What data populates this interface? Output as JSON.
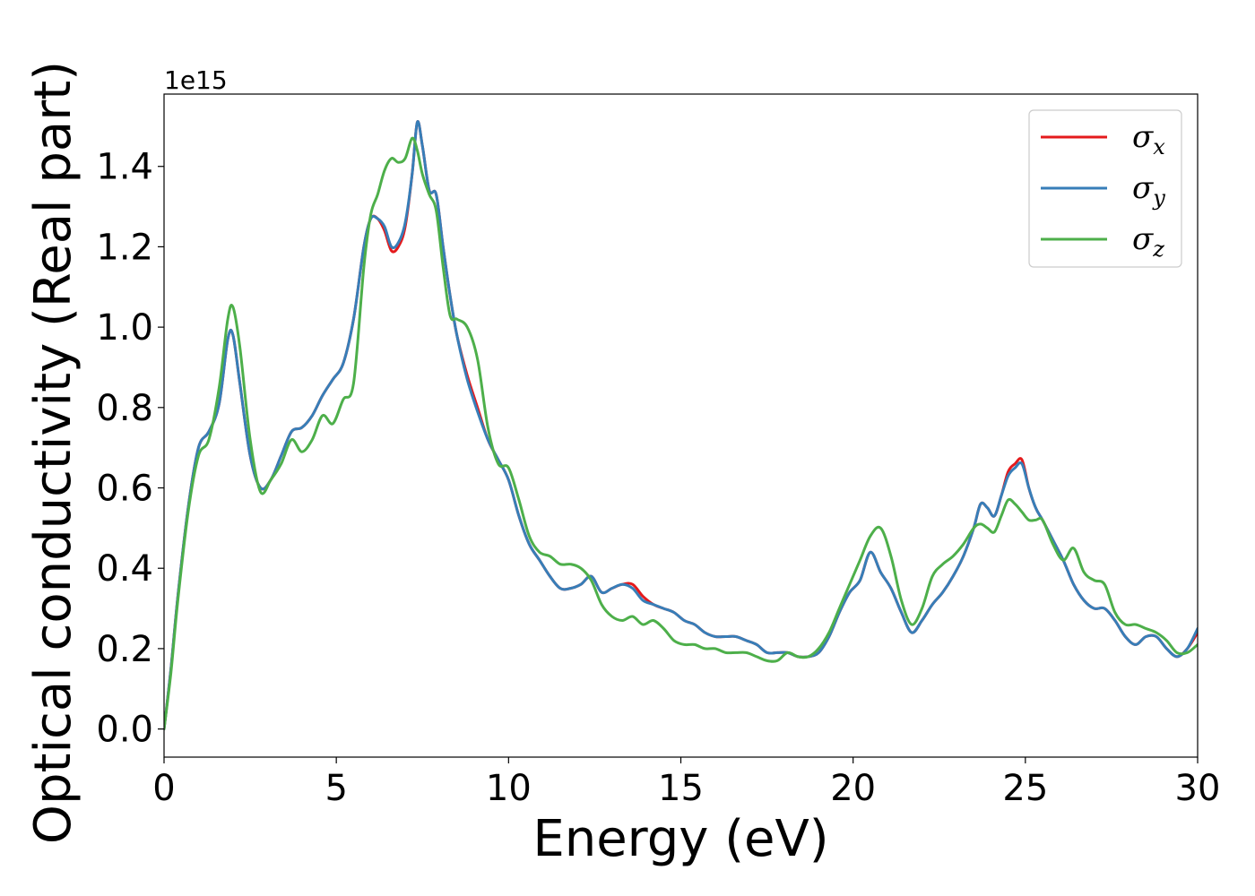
{
  "chart_data": {
    "type": "line",
    "xlabel": "Energy (eV)",
    "ylabel": "Optical conductivity (Real part)",
    "y_offset_label": "1e15",
    "xlim": [
      0,
      30
    ],
    "ylim": [
      -0.07,
      1.58
    ],
    "x_ticks": [
      0,
      5,
      10,
      15,
      20,
      25,
      30
    ],
    "x_tick_labels": [
      "0",
      "5",
      "10",
      "15",
      "20",
      "25",
      "30"
    ],
    "y_ticks": [
      0.0,
      0.2,
      0.4,
      0.6,
      0.8,
      1.0,
      1.2,
      1.4
    ],
    "y_tick_labels": [
      "0.0",
      "0.2",
      "0.4",
      "0.6",
      "0.8",
      "1.0",
      "1.2",
      "1.4"
    ],
    "grid": false,
    "legend_position": "top-right",
    "series": [
      {
        "name": "σx",
        "symbol": "σ",
        "subscript": "x",
        "color": "#e41a1c",
        "x": [
          0,
          0.2,
          0.4,
          0.7,
          1.0,
          1.3,
          1.6,
          1.85,
          2.0,
          2.2,
          2.5,
          2.8,
          3.1,
          3.4,
          3.7,
          4.0,
          4.3,
          4.6,
          4.9,
          5.2,
          5.5,
          5.8,
          6.0,
          6.2,
          6.4,
          6.6,
          6.8,
          7.0,
          7.2,
          7.35,
          7.5,
          7.7,
          7.9,
          8.1,
          8.3,
          8.5,
          8.8,
          9.1,
          9.4,
          9.7,
          10.0,
          10.3,
          10.6,
          10.9,
          11.2,
          11.5,
          11.8,
          12.1,
          12.4,
          12.7,
          13.0,
          13.3,
          13.6,
          13.9,
          14.2,
          14.5,
          14.8,
          15.1,
          15.4,
          15.7,
          16.0,
          16.3,
          16.6,
          16.9,
          17.2,
          17.5,
          17.8,
          18.1,
          18.4,
          18.7,
          19.0,
          19.3,
          19.6,
          19.9,
          20.2,
          20.5,
          20.8,
          21.1,
          21.4,
          21.7,
          22.0,
          22.3,
          22.6,
          22.9,
          23.2,
          23.5,
          23.7,
          23.9,
          24.1,
          24.3,
          24.5,
          24.7,
          24.9,
          25.1,
          25.3,
          25.5,
          25.8,
          26.1,
          26.4,
          26.7,
          27.0,
          27.3,
          27.6,
          27.9,
          28.2,
          28.5,
          28.8,
          29.1,
          29.4,
          29.7,
          30.0
        ],
        "y": [
          0.0,
          0.15,
          0.33,
          0.55,
          0.7,
          0.74,
          0.81,
          0.97,
          0.98,
          0.86,
          0.68,
          0.6,
          0.62,
          0.68,
          0.74,
          0.75,
          0.78,
          0.83,
          0.87,
          0.91,
          1.02,
          1.2,
          1.27,
          1.27,
          1.24,
          1.19,
          1.2,
          1.25,
          1.38,
          1.51,
          1.45,
          1.34,
          1.33,
          1.2,
          1.08,
          0.98,
          0.88,
          0.8,
          0.72,
          0.67,
          0.62,
          0.53,
          0.46,
          0.42,
          0.38,
          0.35,
          0.35,
          0.36,
          0.38,
          0.34,
          0.35,
          0.36,
          0.36,
          0.33,
          0.31,
          0.3,
          0.29,
          0.27,
          0.26,
          0.24,
          0.23,
          0.23,
          0.23,
          0.22,
          0.21,
          0.19,
          0.19,
          0.19,
          0.18,
          0.18,
          0.19,
          0.23,
          0.29,
          0.34,
          0.37,
          0.44,
          0.39,
          0.35,
          0.29,
          0.24,
          0.27,
          0.31,
          0.34,
          0.38,
          0.43,
          0.5,
          0.56,
          0.55,
          0.53,
          0.58,
          0.64,
          0.66,
          0.67,
          0.6,
          0.55,
          0.52,
          0.47,
          0.42,
          0.36,
          0.32,
          0.3,
          0.3,
          0.27,
          0.23,
          0.21,
          0.23,
          0.23,
          0.2,
          0.18,
          0.2,
          0.24
        ]
      },
      {
        "name": "σy",
        "symbol": "σ",
        "subscript": "y",
        "color": "#377eb8",
        "x": [
          0,
          0.2,
          0.4,
          0.7,
          1.0,
          1.3,
          1.6,
          1.85,
          2.0,
          2.2,
          2.5,
          2.8,
          3.1,
          3.4,
          3.7,
          4.0,
          4.3,
          4.6,
          4.9,
          5.2,
          5.5,
          5.8,
          6.0,
          6.2,
          6.4,
          6.6,
          6.8,
          7.0,
          7.2,
          7.35,
          7.5,
          7.7,
          7.9,
          8.1,
          8.3,
          8.5,
          8.8,
          9.1,
          9.4,
          9.7,
          10.0,
          10.3,
          10.6,
          10.9,
          11.2,
          11.5,
          11.8,
          12.1,
          12.4,
          12.7,
          13.0,
          13.3,
          13.6,
          13.9,
          14.2,
          14.5,
          14.8,
          15.1,
          15.4,
          15.7,
          16.0,
          16.3,
          16.6,
          16.9,
          17.2,
          17.5,
          17.8,
          18.1,
          18.4,
          18.7,
          19.0,
          19.3,
          19.6,
          19.9,
          20.2,
          20.5,
          20.8,
          21.1,
          21.4,
          21.7,
          22.0,
          22.3,
          22.6,
          22.9,
          23.2,
          23.5,
          23.7,
          23.9,
          24.1,
          24.3,
          24.5,
          24.7,
          24.9,
          25.1,
          25.3,
          25.5,
          25.8,
          26.1,
          26.4,
          26.7,
          27.0,
          27.3,
          27.6,
          27.9,
          28.2,
          28.5,
          28.8,
          29.1,
          29.4,
          29.7,
          30.0
        ],
        "y": [
          0.0,
          0.15,
          0.33,
          0.55,
          0.7,
          0.74,
          0.81,
          0.97,
          0.98,
          0.86,
          0.68,
          0.6,
          0.62,
          0.68,
          0.74,
          0.75,
          0.78,
          0.83,
          0.87,
          0.91,
          1.02,
          1.2,
          1.27,
          1.27,
          1.25,
          1.2,
          1.21,
          1.26,
          1.38,
          1.51,
          1.45,
          1.34,
          1.33,
          1.2,
          1.08,
          0.98,
          0.87,
          0.79,
          0.72,
          0.67,
          0.62,
          0.53,
          0.46,
          0.42,
          0.38,
          0.35,
          0.35,
          0.36,
          0.38,
          0.34,
          0.35,
          0.36,
          0.35,
          0.32,
          0.31,
          0.3,
          0.29,
          0.27,
          0.26,
          0.24,
          0.23,
          0.23,
          0.23,
          0.22,
          0.21,
          0.19,
          0.19,
          0.19,
          0.18,
          0.18,
          0.19,
          0.23,
          0.29,
          0.34,
          0.37,
          0.44,
          0.39,
          0.35,
          0.29,
          0.24,
          0.27,
          0.31,
          0.34,
          0.38,
          0.43,
          0.5,
          0.56,
          0.55,
          0.53,
          0.58,
          0.63,
          0.65,
          0.66,
          0.6,
          0.55,
          0.52,
          0.47,
          0.42,
          0.36,
          0.32,
          0.3,
          0.3,
          0.27,
          0.23,
          0.21,
          0.23,
          0.23,
          0.2,
          0.18,
          0.2,
          0.25
        ]
      },
      {
        "name": "σz",
        "symbol": "σ",
        "subscript": "z",
        "color": "#4daf4a",
        "x": [
          0,
          0.2,
          0.4,
          0.7,
          1.0,
          1.3,
          1.6,
          1.85,
          2.0,
          2.2,
          2.5,
          2.8,
          3.1,
          3.4,
          3.7,
          4.0,
          4.3,
          4.6,
          4.9,
          5.2,
          5.5,
          5.8,
          6.0,
          6.2,
          6.4,
          6.6,
          6.8,
          7.0,
          7.2,
          7.35,
          7.5,
          7.7,
          7.9,
          8.1,
          8.3,
          8.5,
          8.8,
          9.1,
          9.4,
          9.7,
          10.0,
          10.3,
          10.6,
          10.9,
          11.2,
          11.5,
          11.8,
          12.1,
          12.4,
          12.7,
          13.0,
          13.3,
          13.6,
          13.9,
          14.2,
          14.5,
          14.8,
          15.1,
          15.4,
          15.7,
          16.0,
          16.3,
          16.6,
          16.9,
          17.2,
          17.5,
          17.8,
          18.1,
          18.4,
          18.7,
          19.0,
          19.3,
          19.6,
          19.9,
          20.2,
          20.5,
          20.8,
          21.1,
          21.4,
          21.7,
          22.0,
          22.3,
          22.6,
          22.9,
          23.2,
          23.5,
          23.7,
          23.9,
          24.1,
          24.3,
          24.5,
          24.7,
          24.9,
          25.1,
          25.3,
          25.5,
          25.8,
          26.1,
          26.4,
          26.7,
          27.0,
          27.3,
          27.6,
          27.9,
          28.2,
          28.5,
          28.8,
          29.1,
          29.4,
          29.7,
          30.0
        ],
        "y": [
          0.0,
          0.14,
          0.32,
          0.54,
          0.68,
          0.72,
          0.85,
          1.02,
          1.05,
          0.95,
          0.72,
          0.59,
          0.62,
          0.66,
          0.72,
          0.69,
          0.72,
          0.78,
          0.76,
          0.82,
          0.86,
          1.15,
          1.28,
          1.33,
          1.39,
          1.42,
          1.41,
          1.42,
          1.47,
          1.44,
          1.38,
          1.33,
          1.29,
          1.15,
          1.03,
          1.02,
          1.0,
          0.92,
          0.75,
          0.66,
          0.65,
          0.57,
          0.48,
          0.44,
          0.43,
          0.41,
          0.41,
          0.4,
          0.37,
          0.31,
          0.28,
          0.27,
          0.28,
          0.26,
          0.27,
          0.25,
          0.22,
          0.21,
          0.21,
          0.2,
          0.2,
          0.19,
          0.19,
          0.19,
          0.18,
          0.17,
          0.17,
          0.19,
          0.18,
          0.18,
          0.2,
          0.24,
          0.3,
          0.36,
          0.42,
          0.48,
          0.5,
          0.43,
          0.32,
          0.26,
          0.3,
          0.38,
          0.41,
          0.43,
          0.46,
          0.5,
          0.51,
          0.5,
          0.49,
          0.53,
          0.57,
          0.56,
          0.54,
          0.52,
          0.52,
          0.52,
          0.46,
          0.42,
          0.45,
          0.39,
          0.37,
          0.36,
          0.29,
          0.26,
          0.26,
          0.25,
          0.24,
          0.22,
          0.19,
          0.19,
          0.21
        ]
      }
    ]
  }
}
